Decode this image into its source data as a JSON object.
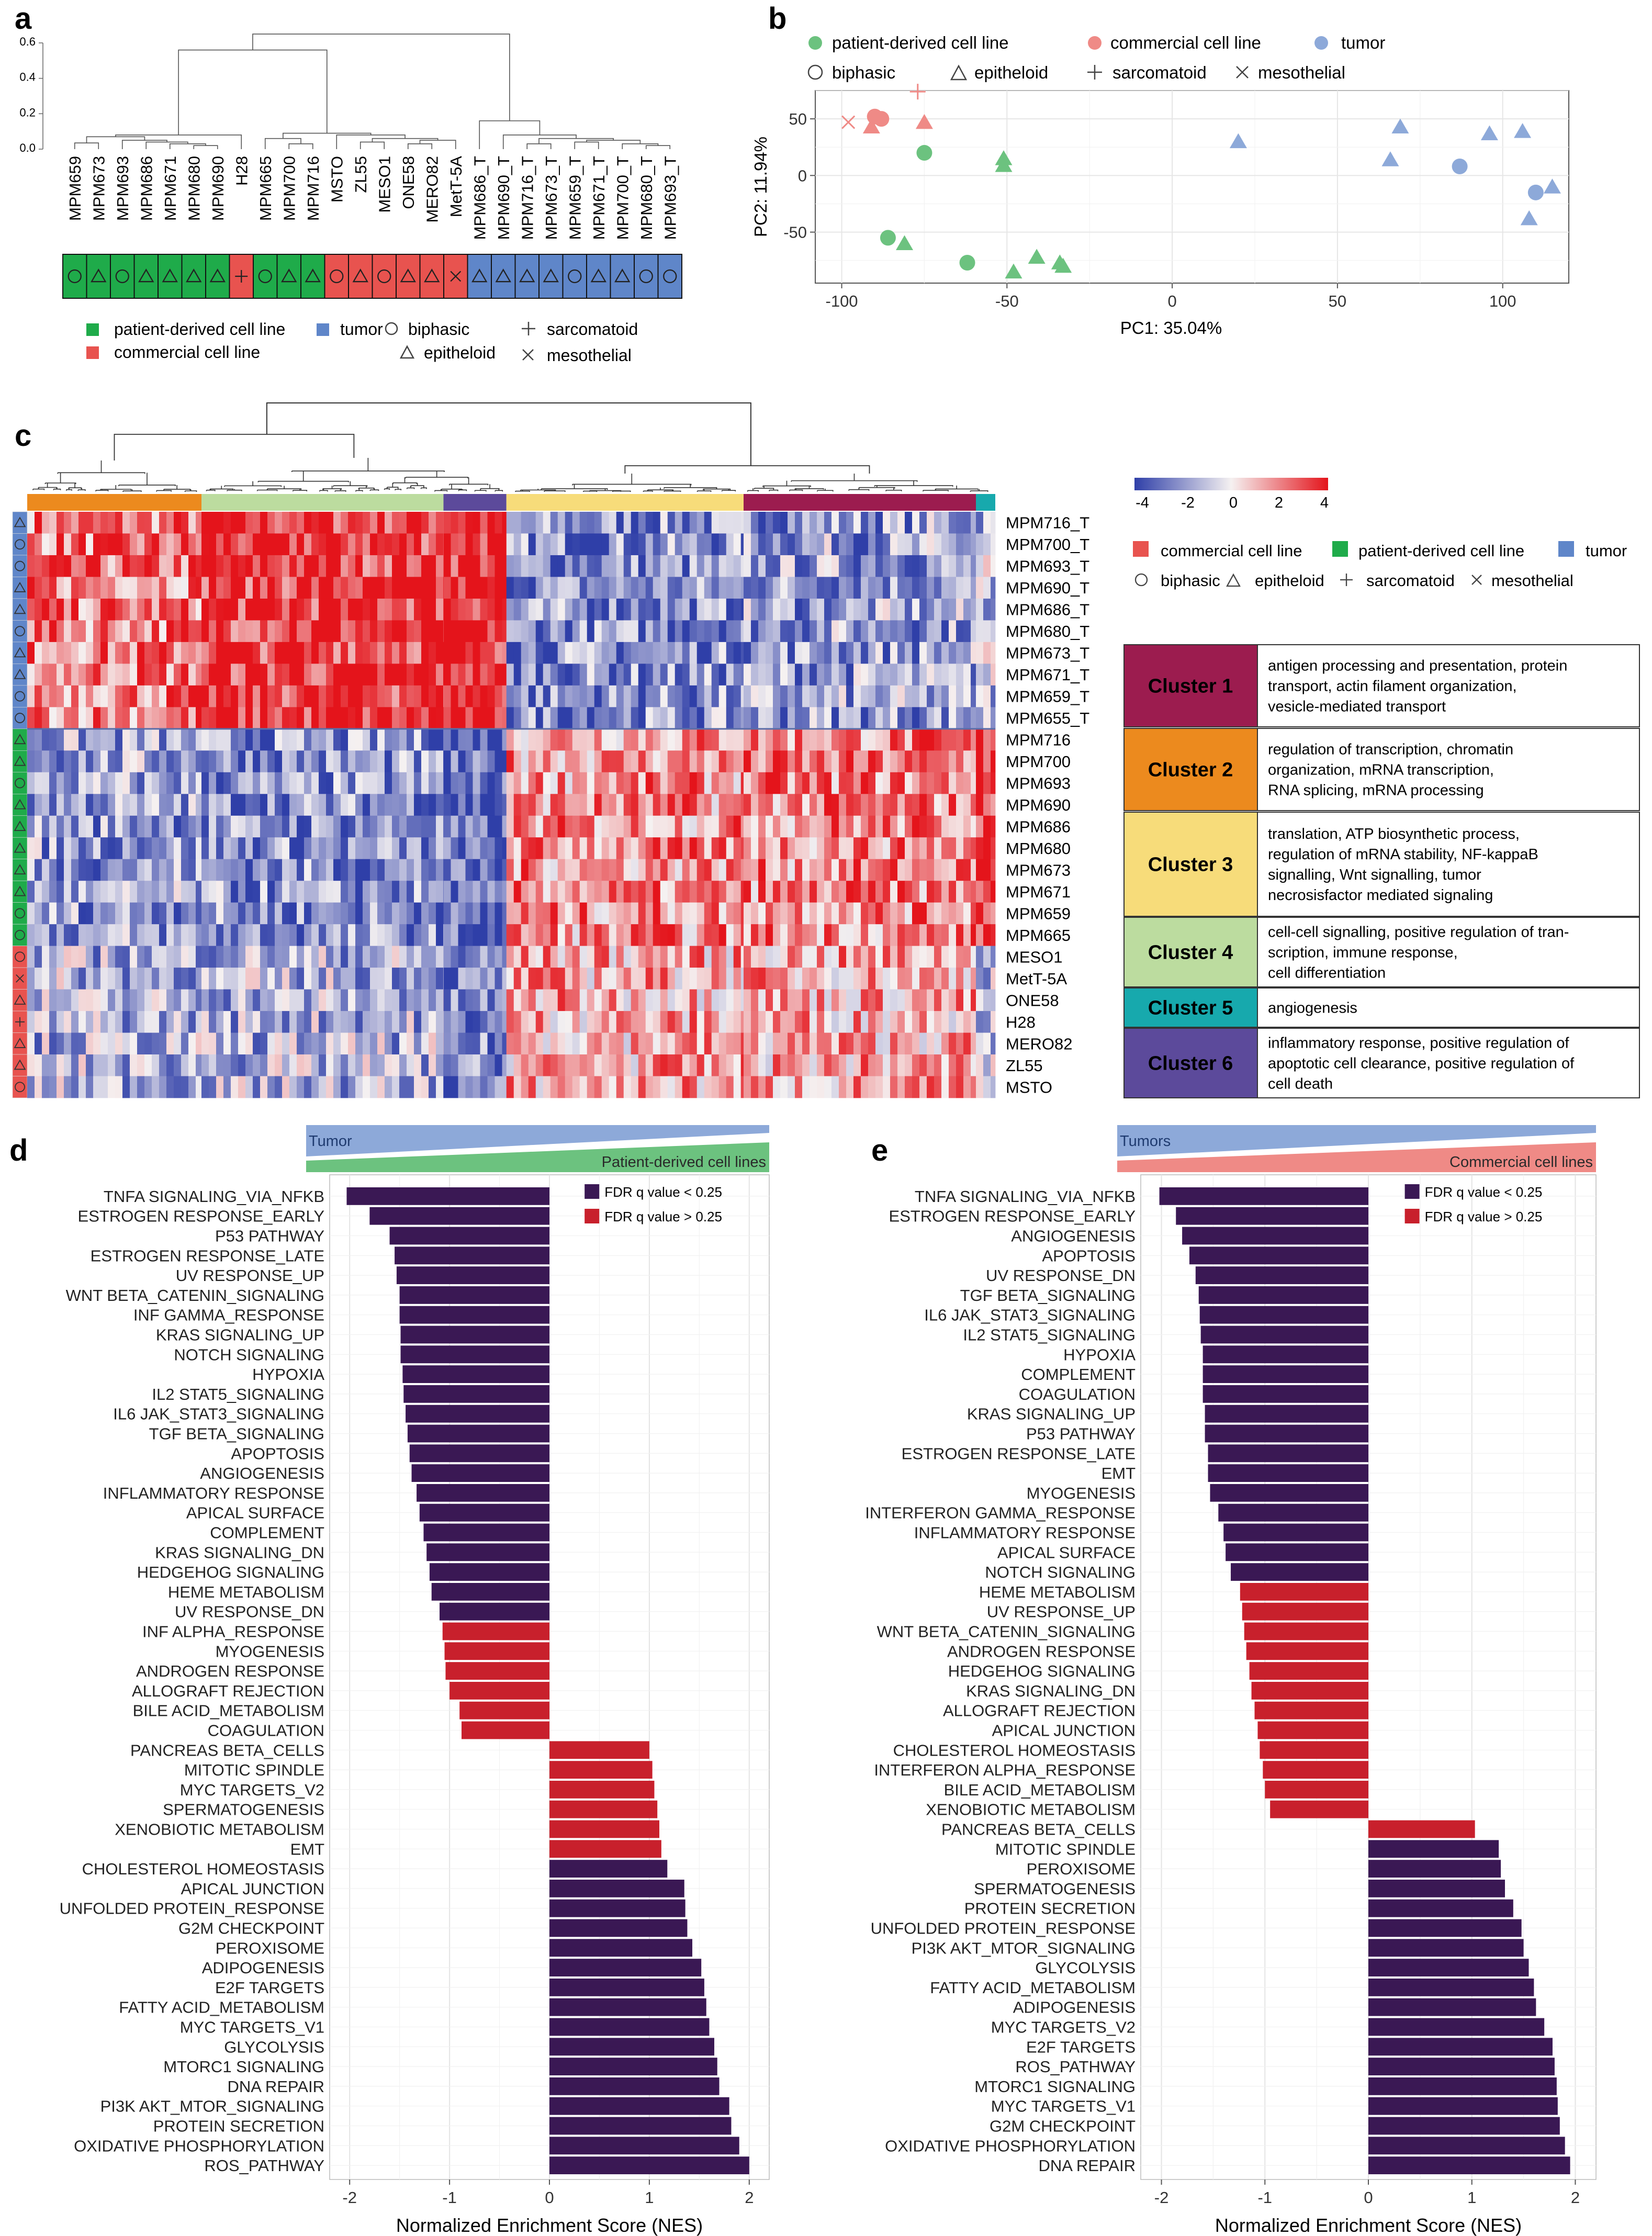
{
  "colors": {
    "patient": "#1fab4a",
    "commercial": "#e8534f",
    "tumor": "#5f86c9",
    "patient_light": "#6cc27f",
    "commercial_light": "#ef8a86",
    "tumor_light": "#8da9d9",
    "fdr_low": "#3a1854",
    "fdr_high": "#c8202c",
    "c1": "#9c1c4f",
    "c2": "#ec8a1e",
    "c3": "#f7dc7a",
    "c4": "#bcdc9f",
    "c5": "#17a9ad",
    "c6": "#5c4a9b",
    "hm_low": "#2f3fa8",
    "hm_mid": "#f5f1f1",
    "hm_high": "#e4141b"
  },
  "panels": {
    "a": "a",
    "b": "b",
    "c": "c",
    "d": "d",
    "e": "e"
  },
  "legend": {
    "patient": "patient-derived cell line",
    "commercial": "commercial cell line",
    "tumor": "tumor",
    "biphasic": "biphasic",
    "epitheloid": "epitheloid",
    "sarcomatoid": "sarcomatoid",
    "mesothelial": "mesothelial"
  },
  "panel_a": {
    "y_ticks": [
      "0.6",
      "0.4",
      "0.2",
      "0.0"
    ],
    "samples": [
      {
        "name": "MPM659",
        "group": "patient",
        "shape": "circle"
      },
      {
        "name": "MPM673",
        "group": "patient",
        "shape": "triangle"
      },
      {
        "name": "MPM693",
        "group": "patient",
        "shape": "circle"
      },
      {
        "name": "MPM686",
        "group": "patient",
        "shape": "triangle"
      },
      {
        "name": "MPM671",
        "group": "patient",
        "shape": "triangle"
      },
      {
        "name": "MPM680",
        "group": "patient",
        "shape": "triangle"
      },
      {
        "name": "MPM690",
        "group": "patient",
        "shape": "triangle"
      },
      {
        "name": "H28",
        "group": "commercial",
        "shape": "plus"
      },
      {
        "name": "MPM665",
        "group": "patient",
        "shape": "circle"
      },
      {
        "name": "MPM700",
        "group": "patient",
        "shape": "triangle"
      },
      {
        "name": "MPM716",
        "group": "patient",
        "shape": "triangle"
      },
      {
        "name": "MSTO",
        "group": "commercial",
        "shape": "circle"
      },
      {
        "name": "ZL55",
        "group": "commercial",
        "shape": "triangle"
      },
      {
        "name": "MESO1",
        "group": "commercial",
        "shape": "circle"
      },
      {
        "name": "ONE58",
        "group": "commercial",
        "shape": "triangle"
      },
      {
        "name": "MERO82",
        "group": "commercial",
        "shape": "triangle"
      },
      {
        "name": "MetT-5A",
        "group": "commercial",
        "shape": "x"
      },
      {
        "name": "MPM686_T",
        "group": "tumor",
        "shape": "triangle"
      },
      {
        "name": "MPM690_T",
        "group": "tumor",
        "shape": "triangle"
      },
      {
        "name": "MPM716_T",
        "group": "tumor",
        "shape": "triangle"
      },
      {
        "name": "MPM673_T",
        "group": "tumor",
        "shape": "triangle"
      },
      {
        "name": "MPM659_T",
        "group": "tumor",
        "shape": "circle"
      },
      {
        "name": "MPM671_T",
        "group": "tumor",
        "shape": "triangle"
      },
      {
        "name": "MPM700_T",
        "group": "tumor",
        "shape": "triangle"
      },
      {
        "name": "MPM680_T",
        "group": "tumor",
        "shape": "circle"
      },
      {
        "name": "MPM693_T",
        "group": "tumor",
        "shape": "circle"
      }
    ]
  },
  "panel_b": {
    "xlabel": "PC1: 35.04%",
    "ylabel": "PC2: 11.94%",
    "x_ticks": [
      -100,
      -50,
      0,
      50,
      100
    ],
    "y_ticks": [
      -50,
      0,
      50
    ],
    "xlim": [
      -108,
      120
    ],
    "ylim": [
      -95,
      75
    ],
    "points": [
      {
        "x": -90,
        "y": 52,
        "g": "commercial",
        "s": "circle"
      },
      {
        "x": -91,
        "y": 43,
        "g": "commercial",
        "s": "triangle"
      },
      {
        "x": -88,
        "y": 50,
        "g": "commercial",
        "s": "circle"
      },
      {
        "x": -98,
        "y": 47,
        "g": "commercial",
        "s": "x"
      },
      {
        "x": -77,
        "y": 74,
        "g": "commercial",
        "s": "plus"
      },
      {
        "x": -75,
        "y": 47,
        "g": "commercial",
        "s": "triangle"
      },
      {
        "x": -75,
        "y": 20,
        "g": "patient",
        "s": "circle"
      },
      {
        "x": -51,
        "y": 15,
        "g": "patient",
        "s": "triangle"
      },
      {
        "x": -51,
        "y": 9,
        "g": "patient",
        "s": "triangle"
      },
      {
        "x": -86,
        "y": -55,
        "g": "patient",
        "s": "circle"
      },
      {
        "x": -81,
        "y": -60,
        "g": "patient",
        "s": "triangle"
      },
      {
        "x": -62,
        "y": -77,
        "g": "patient",
        "s": "circle"
      },
      {
        "x": -48,
        "y": -85,
        "g": "patient",
        "s": "triangle"
      },
      {
        "x": -41,
        "y": -72,
        "g": "patient",
        "s": "triangle"
      },
      {
        "x": -34,
        "y": -77,
        "g": "patient",
        "s": "triangle"
      },
      {
        "x": -33,
        "y": -80,
        "g": "patient",
        "s": "triangle"
      },
      {
        "x": 20,
        "y": 30,
        "g": "tumor",
        "s": "triangle"
      },
      {
        "x": 66,
        "y": 14,
        "g": "tumor",
        "s": "triangle"
      },
      {
        "x": 69,
        "y": 43,
        "g": "tumor",
        "s": "triangle"
      },
      {
        "x": 87,
        "y": 8,
        "g": "tumor",
        "s": "circle"
      },
      {
        "x": 96,
        "y": 37,
        "g": "tumor",
        "s": "triangle"
      },
      {
        "x": 106,
        "y": 39,
        "g": "tumor",
        "s": "triangle"
      },
      {
        "x": 110,
        "y": -15,
        "g": "tumor",
        "s": "circle"
      },
      {
        "x": 115,
        "y": -10,
        "g": "tumor",
        "s": "triangle"
      },
      {
        "x": 108,
        "y": -38,
        "g": "tumor",
        "s": "triangle"
      }
    ]
  },
  "panel_c": {
    "scale_ticks": [
      "-4",
      "-2",
      "0",
      "2",
      "4"
    ],
    "rows": [
      {
        "name": "MPM716_T",
        "g": "tumor",
        "s": "triangle"
      },
      {
        "name": "MPM700_T",
        "g": "tumor",
        "s": "circle"
      },
      {
        "name": "MPM693_T",
        "g": "tumor",
        "s": "circle"
      },
      {
        "name": "MPM690_T",
        "g": "tumor",
        "s": "triangle"
      },
      {
        "name": "MPM686_T",
        "g": "tumor",
        "s": "triangle"
      },
      {
        "name": "MPM680_T",
        "g": "tumor",
        "s": "circle"
      },
      {
        "name": "MPM673_T",
        "g": "tumor",
        "s": "triangle"
      },
      {
        "name": "MPM671_T",
        "g": "tumor",
        "s": "triangle"
      },
      {
        "name": "MPM659_T",
        "g": "tumor",
        "s": "circle"
      },
      {
        "name": "MPM655_T",
        "g": "tumor",
        "s": "circle"
      },
      {
        "name": "MPM716",
        "g": "patient",
        "s": "triangle"
      },
      {
        "name": "MPM700",
        "g": "patient",
        "s": "triangle"
      },
      {
        "name": "MPM693",
        "g": "patient",
        "s": "circle"
      },
      {
        "name": "MPM690",
        "g": "patient",
        "s": "triangle"
      },
      {
        "name": "MPM686",
        "g": "patient",
        "s": "triangle"
      },
      {
        "name": "MPM680",
        "g": "patient",
        "s": "triangle"
      },
      {
        "name": "MPM673",
        "g": "patient",
        "s": "triangle"
      },
      {
        "name": "MPM671",
        "g": "patient",
        "s": "triangle"
      },
      {
        "name": "MPM659",
        "g": "patient",
        "s": "circle"
      },
      {
        "name": "MPM665",
        "g": "patient",
        "s": "circle"
      },
      {
        "name": "MESO1",
        "g": "commercial",
        "s": "circle"
      },
      {
        "name": "MetT-5A",
        "g": "commercial",
        "s": "x"
      },
      {
        "name": "ONE58",
        "g": "commercial",
        "s": "triangle"
      },
      {
        "name": "H28",
        "g": "commercial",
        "s": "plus"
      },
      {
        "name": "MERO82",
        "g": "commercial",
        "s": "triangle"
      },
      {
        "name": "ZL55",
        "g": "commercial",
        "s": "triangle"
      },
      {
        "name": "MSTO",
        "g": "commercial",
        "s": "circle"
      }
    ],
    "column_clusters": [
      {
        "c": "c2",
        "frac": 0.18
      },
      {
        "c": "c4",
        "frac": 0.25
      },
      {
        "c": "c6",
        "frac": 0.065
      },
      {
        "c": "c3",
        "frac": 0.245
      },
      {
        "c": "c1",
        "frac": 0.24
      },
      {
        "c": "c5",
        "frac": 0.02
      }
    ],
    "clusters": [
      {
        "label": "Cluster 1",
        "c": "c1",
        "text": [
          "antigen processing and presentation, protein",
          "transport, actin filament organization,",
          "vesicle-mediated transport"
        ]
      },
      {
        "label": "Cluster 2",
        "c": "c2",
        "text": [
          "regulation of transcription, chromatin",
          "organization, mRNA transcription,",
          "RNA splicing, mRNA processing"
        ]
      },
      {
        "label": "Cluster 3",
        "c": "c3",
        "text": [
          "translation, ATP biosynthetic process,",
          "regulation of mRNA stability, NF-kappaB",
          "signalling, Wnt signalling, tumor",
          "necrosisfactor mediated signaling"
        ]
      },
      {
        "label": "Cluster 4",
        "c": "c4",
        "text": [
          "cell-cell signalling, positive regulation of tran-",
          "scription, immune response,",
          "cell differentiation"
        ]
      },
      {
        "label": "Cluster 5",
        "c": "c5",
        "text": [
          "angiogenesis"
        ]
      },
      {
        "label": "Cluster 6",
        "c": "c6",
        "text": [
          "inflammatory response, positive regulation of",
          "apoptotic cell clearance, positive regulation of",
          "cell death"
        ]
      }
    ]
  },
  "chart_data": [
    {
      "type": "bar",
      "panel": "d",
      "header_left": "Tumor",
      "header_right": "Patient-derived cell lines",
      "xlabel": "Normalized Enrichment Score (NES)",
      "xlim": [
        -2.2,
        2.2
      ],
      "x_ticks": [
        -2,
        -1,
        0,
        1,
        2
      ],
      "legend": [
        "FDR q value < 0.25",
        "FDR q value > 0.25"
      ],
      "categories": [
        "TNFA SIGNALING_VIA_NFKB",
        "ESTROGEN RESPONSE_EARLY",
        "P53 PATHWAY",
        "ESTROGEN RESPONSE_LATE",
        "UV RESPONSE_UP",
        "WNT BETA_CATENIN_SIGNALING",
        "INF GAMMA_RESPONSE",
        "KRAS SIGNALING_UP",
        "NOTCH SIGNALING",
        "HYPOXIA",
        "IL2 STAT5_SIGNALING",
        "IL6 JAK_STAT3_SIGNALING",
        "TGF BETA_SIGNALING",
        "APOPTOSIS",
        "ANGIOGENESIS",
        "INFLAMMATORY RESPONSE",
        "APICAL SURFACE",
        "COMPLEMENT",
        "KRAS SIGNALING_DN",
        "HEDGEHOG SIGNALING",
        "HEME METABOLISM",
        "UV RESPONSE_DN",
        "INF ALPHA_RESPONSE",
        "MYOGENESIS",
        "ANDROGEN RESPONSE",
        "ALLOGRAFT REJECTION",
        "BILE ACID_METABOLISM",
        "COAGULATION",
        "PANCREAS BETA_CELLS",
        "MITOTIC SPINDLE",
        "MYC TARGETS_V2",
        "SPERMATOGENESIS",
        "XENOBIOTIC METABOLISM",
        "EMT",
        "CHOLESTEROL HOMEOSTASIS",
        "APICAL JUNCTION",
        "UNFOLDED PROTEIN_RESPONSE",
        "G2M CHECKPOINT",
        "PEROXISOME",
        "ADIPOGENESIS",
        "E2F TARGETS",
        "FATTY ACID_METABOLISM",
        "MYC TARGETS_V1",
        "GLYCOLYSIS",
        "MTORC1 SIGNALING",
        "DNA REPAIR",
        "PI3K AKT_MTOR_SIGNALING",
        "PROTEIN SECRETION",
        "OXIDATIVE PHOSPHORYLATION",
        "ROS_PATHWAY"
      ],
      "values": [
        -2.03,
        -1.8,
        -1.6,
        -1.55,
        -1.53,
        -1.5,
        -1.5,
        -1.49,
        -1.49,
        -1.47,
        -1.46,
        -1.44,
        -1.42,
        -1.4,
        -1.38,
        -1.33,
        -1.3,
        -1.26,
        -1.23,
        -1.2,
        -1.18,
        -1.1,
        -1.07,
        -1.05,
        -1.04,
        -1.0,
        -0.9,
        -0.88,
        1.0,
        1.03,
        1.05,
        1.08,
        1.1,
        1.12,
        1.18,
        1.35,
        1.36,
        1.38,
        1.43,
        1.52,
        1.55,
        1.57,
        1.6,
        1.65,
        1.68,
        1.7,
        1.8,
        1.82,
        1.9,
        2.0
      ],
      "fdr_high": [
        false,
        false,
        false,
        false,
        false,
        false,
        false,
        false,
        false,
        false,
        false,
        false,
        false,
        false,
        false,
        false,
        false,
        false,
        false,
        false,
        false,
        false,
        true,
        true,
        true,
        true,
        true,
        true,
        true,
        true,
        true,
        true,
        true,
        true,
        false,
        false,
        false,
        false,
        false,
        false,
        false,
        false,
        false,
        false,
        false,
        false,
        false,
        false,
        false,
        false
      ]
    },
    {
      "type": "bar",
      "panel": "e",
      "header_left": "Tumors",
      "header_right": "Commercial cell lines",
      "xlabel": "Normalized Enrichment Score (NES)",
      "xlim": [
        -2.2,
        2.2
      ],
      "x_ticks": [
        -2,
        -1,
        0,
        1,
        2
      ],
      "legend": [
        "FDR q value < 0.25",
        "FDR q value > 0.25"
      ],
      "categories": [
        "TNFA SIGNALING_VIA_NFKB",
        "ESTROGEN RESPONSE_EARLY",
        "ANGIOGENESIS",
        "APOPTOSIS",
        "UV RESPONSE_DN",
        "TGF BETA_SIGNALING",
        "IL6 JAK_STAT3_SIGNALING",
        "IL2 STAT5_SIGNALING",
        "HYPOXIA",
        "COMPLEMENT",
        "COAGULATION",
        "KRAS SIGNALING_UP",
        "P53 PATHWAY",
        "ESTROGEN RESPONSE_LATE",
        "EMT",
        "MYOGENESIS",
        "INTERFERON GAMMA_RESPONSE",
        "INFLAMMATORY RESPONSE",
        "APICAL SURFACE",
        "NOTCH SIGNALING",
        "HEME METABOLISM",
        "UV RESPONSE_UP",
        "WNT BETA_CATENIN_SIGNALING",
        "ANDROGEN RESPONSE",
        "HEDGEHOG SIGNALING",
        "KRAS SIGNALING_DN",
        "ALLOGRAFT REJECTION",
        "APICAL JUNCTION",
        "CHOLESTEROL HOMEOSTASIS",
        "INTERFERON ALPHA_RESPONSE",
        "BILE ACID_METABOLISM",
        "XENOBIOTIC METABOLISM",
        "PANCREAS BETA_CELLS",
        "MITOTIC SPINDLE",
        "PEROXISOME",
        "SPERMATOGENESIS",
        "PROTEIN SECRETION",
        "UNFOLDED PROTEIN_RESPONSE",
        "PI3K AKT_MTOR_SIGNALING",
        "GLYCOLYSIS",
        "FATTY ACID_METABOLISM",
        "ADIPOGENESIS",
        "MYC TARGETS_V2",
        "E2F TARGETS",
        "ROS_PATHWAY",
        "MTORC1 SIGNALING",
        "MYC TARGETS_V1",
        "G2M CHECKPOINT",
        "OXIDATIVE PHOSPHORYLATION",
        "DNA REPAIR"
      ],
      "values": [
        -2.02,
        -1.86,
        -1.8,
        -1.73,
        -1.67,
        -1.64,
        -1.63,
        -1.62,
        -1.6,
        -1.6,
        -1.6,
        -1.58,
        -1.58,
        -1.55,
        -1.55,
        -1.53,
        -1.45,
        -1.4,
        -1.38,
        -1.33,
        -1.24,
        -1.22,
        -1.2,
        -1.18,
        -1.15,
        -1.13,
        -1.1,
        -1.07,
        -1.05,
        -1.02,
        -1.0,
        -0.95,
        1.03,
        1.26,
        1.28,
        1.32,
        1.4,
        1.48,
        1.5,
        1.55,
        1.6,
        1.62,
        1.7,
        1.78,
        1.8,
        1.82,
        1.83,
        1.85,
        1.9,
        1.95
      ],
      "fdr_high": [
        false,
        false,
        false,
        false,
        false,
        false,
        false,
        false,
        false,
        false,
        false,
        false,
        false,
        false,
        false,
        false,
        false,
        false,
        false,
        false,
        true,
        true,
        true,
        true,
        true,
        true,
        true,
        true,
        true,
        true,
        true,
        true,
        true,
        false,
        false,
        false,
        false,
        false,
        false,
        false,
        false,
        false,
        false,
        false,
        false,
        false,
        false,
        false,
        false,
        false
      ]
    }
  ]
}
